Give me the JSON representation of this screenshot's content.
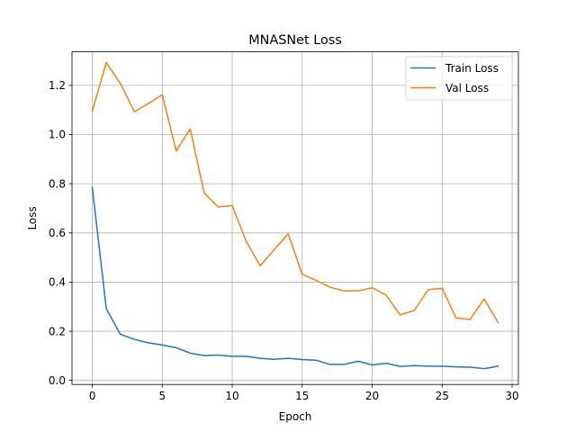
{
  "chart_data": {
    "type": "line",
    "title": "MNASNet Loss",
    "xlabel": "Epoch",
    "ylabel": "Loss",
    "xlim": [
      -1.45,
      30.45
    ],
    "ylim": [
      -0.0165,
      1.3365
    ],
    "xticks": [
      0,
      5,
      10,
      15,
      20,
      25,
      30
    ],
    "yticks": [
      0.0,
      0.2,
      0.4,
      0.6,
      0.8,
      1.0,
      1.2
    ],
    "xtick_labels": [
      "0",
      "5",
      "10",
      "15",
      "20",
      "25",
      "30"
    ],
    "ytick_labels": [
      "0.0",
      "0.2",
      "0.4",
      "0.6",
      "0.8",
      "1.0",
      "1.2"
    ],
    "grid": true,
    "legend_position": "top-right",
    "x": [
      0,
      1,
      2,
      3,
      4,
      5,
      6,
      7,
      8,
      9,
      10,
      11,
      12,
      13,
      14,
      15,
      16,
      17,
      18,
      19,
      20,
      21,
      22,
      23,
      24,
      25,
      26,
      27,
      28,
      29
    ],
    "series": [
      {
        "name": "Train Loss",
        "color": "#1f77b4",
        "values": [
          0.785,
          0.292,
          0.188,
          0.167,
          0.153,
          0.144,
          0.133,
          0.111,
          0.101,
          0.103,
          0.098,
          0.098,
          0.09,
          0.086,
          0.09,
          0.085,
          0.082,
          0.065,
          0.065,
          0.078,
          0.063,
          0.07,
          0.057,
          0.06,
          0.058,
          0.058,
          0.055,
          0.054,
          0.048,
          0.058
        ]
      },
      {
        "name": "Val Loss",
        "color": "#ff7f0e",
        "values": [
          1.095,
          1.293,
          1.208,
          1.093,
          1.126,
          1.162,
          0.933,
          1.023,
          0.762,
          0.706,
          0.711,
          0.566,
          0.466,
          0.532,
          0.596,
          0.431,
          0.407,
          0.379,
          0.364,
          0.364,
          0.377,
          0.347,
          0.267,
          0.284,
          0.369,
          0.375,
          0.254,
          0.248,
          0.332,
          0.235
        ]
      }
    ]
  }
}
